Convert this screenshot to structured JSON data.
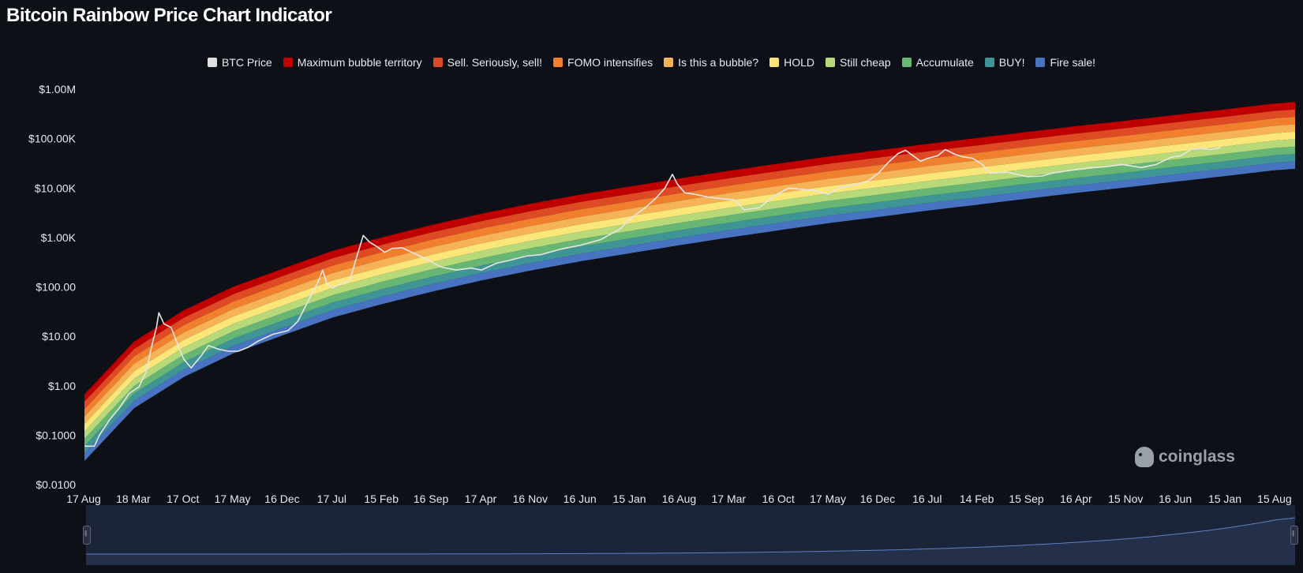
{
  "title": "Bitcoin Rainbow Price Chart Indicator",
  "watermark": "coinglass",
  "colors": {
    "background": "#0d1017",
    "price_line": "#e6e6e6",
    "navigator_fill": "#1b2438",
    "navigator_line": "#5b82c4"
  },
  "chart_data": {
    "type": "area",
    "y_scale": "log",
    "ylim": [
      0.01,
      1000000
    ],
    "grid": false,
    "legend_position": "top-center",
    "y_ticks": [
      "$1.00M",
      "$100.00K",
      "$10.00K",
      "$1.00K",
      "$100.00",
      "$10.00",
      "$1.00",
      "$0.1000",
      "$0.0100"
    ],
    "x_ticks": [
      "17 Aug",
      "18 Mar",
      "17 Oct",
      "17 May",
      "16 Dec",
      "17 Jul",
      "15 Feb",
      "16 Sep",
      "17 Apr",
      "16 Nov",
      "16 Jun",
      "15 Jan",
      "16 Aug",
      "17 Mar",
      "16 Oct",
      "17 May",
      "16 Dec",
      "16 Jul",
      "14 Feb",
      "15 Sep",
      "16 Apr",
      "15 Nov",
      "16 Jun",
      "15 Jan",
      "15 Aug"
    ],
    "legend": [
      {
        "name": "BTC Price",
        "color": "#e0e0e0"
      },
      {
        "name": "Maximum bubble territory",
        "color": "#c00000"
      },
      {
        "name": "Sell. Seriously, sell!",
        "color": "#dd4a24"
      },
      {
        "name": "FOMO intensifies",
        "color": "#f0802e"
      },
      {
        "name": "Is this a bubble?",
        "color": "#f6b257"
      },
      {
        "name": "HOLD",
        "color": "#fbe679"
      },
      {
        "name": "Still cheap",
        "color": "#b7d979"
      },
      {
        "name": "Accumulate",
        "color": "#67b674"
      },
      {
        "name": "BUY!",
        "color": "#3f9596"
      },
      {
        "name": "Fire sale!",
        "color": "#4873c0"
      }
    ],
    "bands": {
      "x_range": [
        0,
        24.4
      ],
      "band_bottom": [
        [
          0,
          0.03
        ],
        [
          1,
          0.35
        ],
        [
          2,
          1.5
        ],
        [
          3,
          4.5
        ],
        [
          4,
          10.5
        ],
        [
          5,
          24
        ],
        [
          6,
          45
        ],
        [
          7,
          80
        ],
        [
          8,
          135
        ],
        [
          9,
          215
        ],
        [
          10,
          330
        ],
        [
          11,
          480
        ],
        [
          12,
          700
        ],
        [
          13,
          1000
        ],
        [
          14,
          1400
        ],
        [
          15,
          1950
        ],
        [
          16,
          2600
        ],
        [
          17,
          3500
        ],
        [
          18,
          4600
        ],
        [
          19,
          6100
        ],
        [
          20,
          8000
        ],
        [
          21,
          10300
        ],
        [
          22,
          13500
        ],
        [
          23,
          17500
        ],
        [
          24,
          23000
        ],
        [
          24.4,
          24500
        ]
      ],
      "band_step_log10": 0.15
    },
    "series": [
      {
        "name": "BTC Price",
        "points": [
          [
            0.0,
            0.06
          ],
          [
            0.2,
            0.06
          ],
          [
            0.3,
            0.1
          ],
          [
            0.5,
            0.2
          ],
          [
            0.7,
            0.35
          ],
          [
            0.9,
            0.7
          ],
          [
            1.1,
            0.95
          ],
          [
            1.25,
            2
          ],
          [
            1.35,
            6
          ],
          [
            1.45,
            15
          ],
          [
            1.5,
            30
          ],
          [
            1.6,
            18
          ],
          [
            1.75,
            15
          ],
          [
            1.9,
            6
          ],
          [
            2.0,
            3.5
          ],
          [
            2.15,
            2.3
          ],
          [
            2.35,
            4
          ],
          [
            2.5,
            6.5
          ],
          [
            2.7,
            5.5
          ],
          [
            2.9,
            5
          ],
          [
            3.1,
            5
          ],
          [
            3.3,
            6
          ],
          [
            3.5,
            8
          ],
          [
            3.8,
            11
          ],
          [
            4.1,
            13
          ],
          [
            4.3,
            20
          ],
          [
            4.5,
            50
          ],
          [
            4.7,
            120
          ],
          [
            4.8,
            220
          ],
          [
            4.88,
            120
          ],
          [
            5.0,
            95
          ],
          [
            5.2,
            120
          ],
          [
            5.35,
            135
          ],
          [
            5.45,
            300
          ],
          [
            5.55,
            650
          ],
          [
            5.62,
            1100
          ],
          [
            5.75,
            800
          ],
          [
            5.9,
            650
          ],
          [
            6.05,
            500
          ],
          [
            6.2,
            600
          ],
          [
            6.4,
            620
          ],
          [
            6.6,
            500
          ],
          [
            6.9,
            360
          ],
          [
            7.2,
            250
          ],
          [
            7.5,
            220
          ],
          [
            7.8,
            240
          ],
          [
            8.0,
            220
          ],
          [
            8.3,
            300
          ],
          [
            8.6,
            350
          ],
          [
            8.9,
            420
          ],
          [
            9.2,
            450
          ],
          [
            9.6,
            580
          ],
          [
            10.0,
            700
          ],
          [
            10.4,
            900
          ],
          [
            10.8,
            1500
          ],
          [
            11.0,
            2400
          ],
          [
            11.3,
            4000
          ],
          [
            11.5,
            6000
          ],
          [
            11.7,
            10000
          ],
          [
            11.85,
            19000
          ],
          [
            11.95,
            12000
          ],
          [
            12.1,
            8000
          ],
          [
            12.3,
            7500
          ],
          [
            12.6,
            6500
          ],
          [
            12.9,
            6000
          ],
          [
            13.1,
            5800
          ],
          [
            13.3,
            3600
          ],
          [
            13.6,
            4000
          ],
          [
            13.9,
            7000
          ],
          [
            14.2,
            10000
          ],
          [
            14.4,
            9500
          ],
          [
            14.7,
            9000
          ],
          [
            15.0,
            7500
          ],
          [
            15.2,
            10000
          ],
          [
            15.5,
            11500
          ],
          [
            15.8,
            14000
          ],
          [
            16.0,
            20000
          ],
          [
            16.2,
            33000
          ],
          [
            16.4,
            50000
          ],
          [
            16.55,
            58000
          ],
          [
            16.7,
            45000
          ],
          [
            16.85,
            35000
          ],
          [
            17.0,
            40000
          ],
          [
            17.2,
            45000
          ],
          [
            17.35,
            60000
          ],
          [
            17.55,
            48000
          ],
          [
            17.7,
            43000
          ],
          [
            17.9,
            40000
          ],
          [
            18.1,
            30000
          ],
          [
            18.25,
            20000
          ],
          [
            18.6,
            21000
          ],
          [
            19.0,
            17000
          ],
          [
            19.3,
            17500
          ],
          [
            19.5,
            20000
          ],
          [
            19.9,
            23000
          ],
          [
            20.3,
            26000
          ],
          [
            20.6,
            27000
          ],
          [
            20.9,
            30000
          ],
          [
            21.1,
            28000
          ],
          [
            21.3,
            26000
          ],
          [
            21.6,
            30000
          ],
          [
            21.9,
            42000
          ],
          [
            22.1,
            45000
          ],
          [
            22.3,
            60000
          ],
          [
            22.5,
            63000
          ],
          [
            22.7,
            60000
          ],
          [
            22.9,
            66000
          ]
        ]
      }
    ]
  }
}
